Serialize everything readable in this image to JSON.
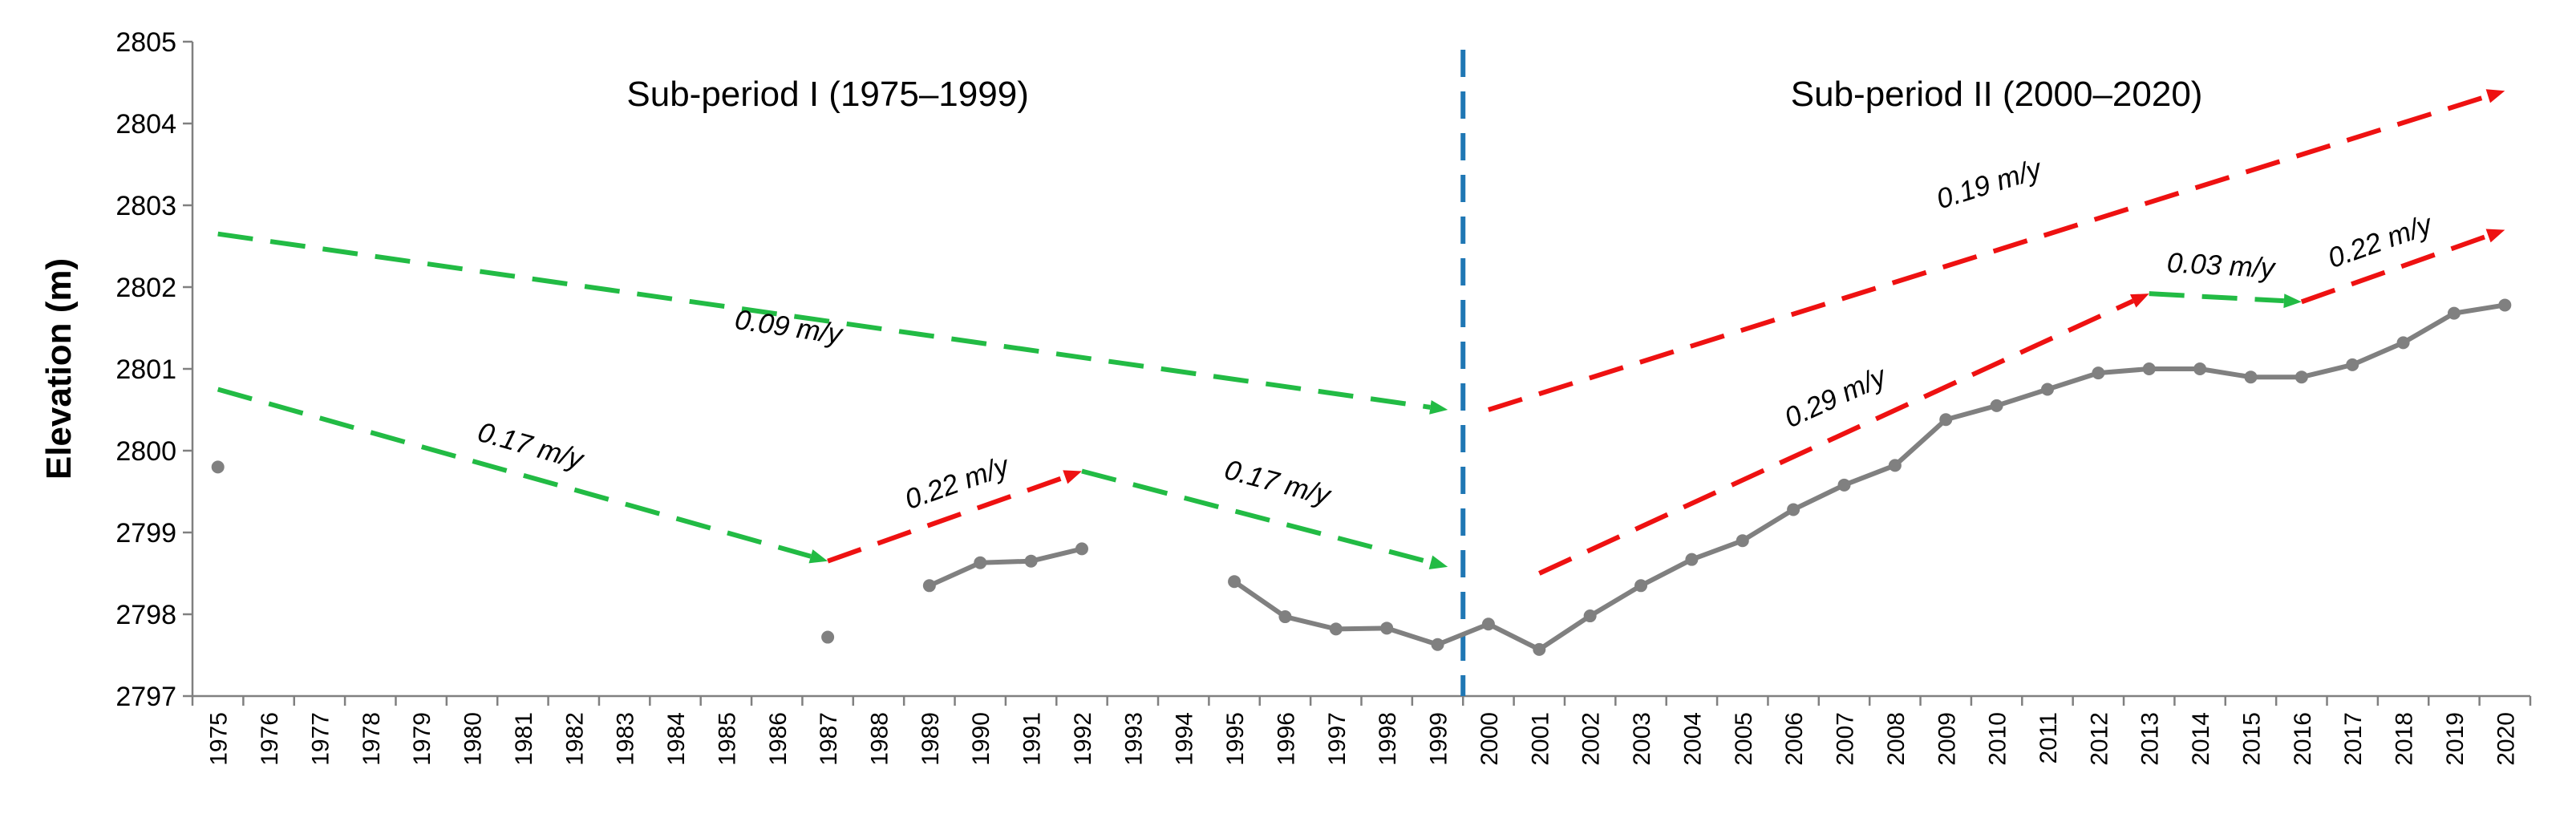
{
  "chart_data": {
    "type": "line",
    "title": "",
    "xlabel": "",
    "ylabel": "Elevation (m)",
    "ylim": [
      2797,
      2805
    ],
    "yticks": [
      2797,
      2798,
      2799,
      2800,
      2801,
      2802,
      2803,
      2804,
      2805
    ],
    "categories": [
      "1975",
      "1976",
      "1977",
      "1978",
      "1979",
      "1980",
      "1981",
      "1982",
      "1983",
      "1984",
      "1985",
      "1986",
      "1987",
      "1988",
      "1989",
      "1990",
      "1991",
      "1992",
      "1993",
      "1994",
      "1995",
      "1996",
      "1997",
      "1998",
      "1999",
      "2000",
      "2001",
      "2002",
      "2003",
      "2004",
      "2005",
      "2006",
      "2007",
      "2008",
      "2009",
      "2010",
      "2011",
      "2012",
      "2013",
      "2014",
      "2015",
      "2016",
      "2017",
      "2018",
      "2019",
      "2020"
    ],
    "grid": false,
    "series": [
      {
        "name": "Elevation",
        "color": "#808080",
        "values": [
          2799.8,
          null,
          null,
          null,
          null,
          null,
          null,
          null,
          null,
          null,
          null,
          null,
          2797.72,
          null,
          2798.35,
          2798.63,
          2798.65,
          2798.8,
          null,
          null,
          2798.4,
          2797.97,
          2797.82,
          2797.83,
          2797.63,
          2797.88,
          2797.57,
          2797.98,
          2798.35,
          2798.67,
          2798.9,
          2799.28,
          2799.58,
          2799.82,
          2800.38,
          2800.55,
          2800.75,
          2800.95,
          2801.0,
          2801.0,
          2800.9,
          2800.9,
          2801.05,
          2801.32,
          2801.68,
          2801.78
        ]
      }
    ],
    "divider": {
      "at": "1999.5",
      "color": "#1f77b4"
    },
    "periods": [
      {
        "label": "Sub-period I (1975–1999)",
        "center_year": 1987
      },
      {
        "label": "Sub-period II (2000–2020)",
        "center_year": 2010
      }
    ],
    "trends": [
      {
        "label": "0.09 m/y",
        "color": "#22bb44",
        "from": [
          1975,
          2802.65
        ],
        "to": [
          1999.2,
          2800.5
        ],
        "label_pos": [
          1986.2,
          2801.4
        ]
      },
      {
        "label": "0.17 m/y",
        "color": "#22bb44",
        "from": [
          1975,
          2800.75
        ],
        "to": [
          1987,
          2798.65
        ],
        "label_pos": [
          1981.1,
          2799.95
        ]
      },
      {
        "label": "0.22 m/y",
        "color": "#ee1111",
        "from": [
          1987,
          2798.65
        ],
        "to": [
          1992,
          2799.75
        ],
        "label_pos": [
          1989.6,
          2799.5
        ]
      },
      {
        "label": "0.17 m/y",
        "color": "#22bb44",
        "from": [
          1992,
          2799.75
        ],
        "to": [
          1999.2,
          2798.58
        ],
        "label_pos": [
          1995.8,
          2799.5
        ]
      },
      {
        "label": "0.19 m/y",
        "color": "#ee1111",
        "from": [
          2000,
          2800.5
        ],
        "to": [
          2020,
          2804.4
        ],
        "label_pos": [
          2009.9,
          2803.15
        ]
      },
      {
        "label": "0.29 m/y",
        "color": "#ee1111",
        "from": [
          2001,
          2798.5
        ],
        "to": [
          2013,
          2801.92
        ],
        "label_pos": [
          2006.9,
          2800.55
        ]
      },
      {
        "label": "0.03 m/y",
        "color": "#22bb44",
        "from": [
          2013,
          2801.92
        ],
        "to": [
          2016,
          2801.82
        ],
        "label_pos": [
          2014.4,
          2802.15
        ]
      },
      {
        "label": "0.22 m/y",
        "color": "#ee1111",
        "from": [
          2016,
          2801.82
        ],
        "to": [
          2020,
          2802.7
        ],
        "label_pos": [
          2017.6,
          2802.45
        ]
      }
    ]
  }
}
